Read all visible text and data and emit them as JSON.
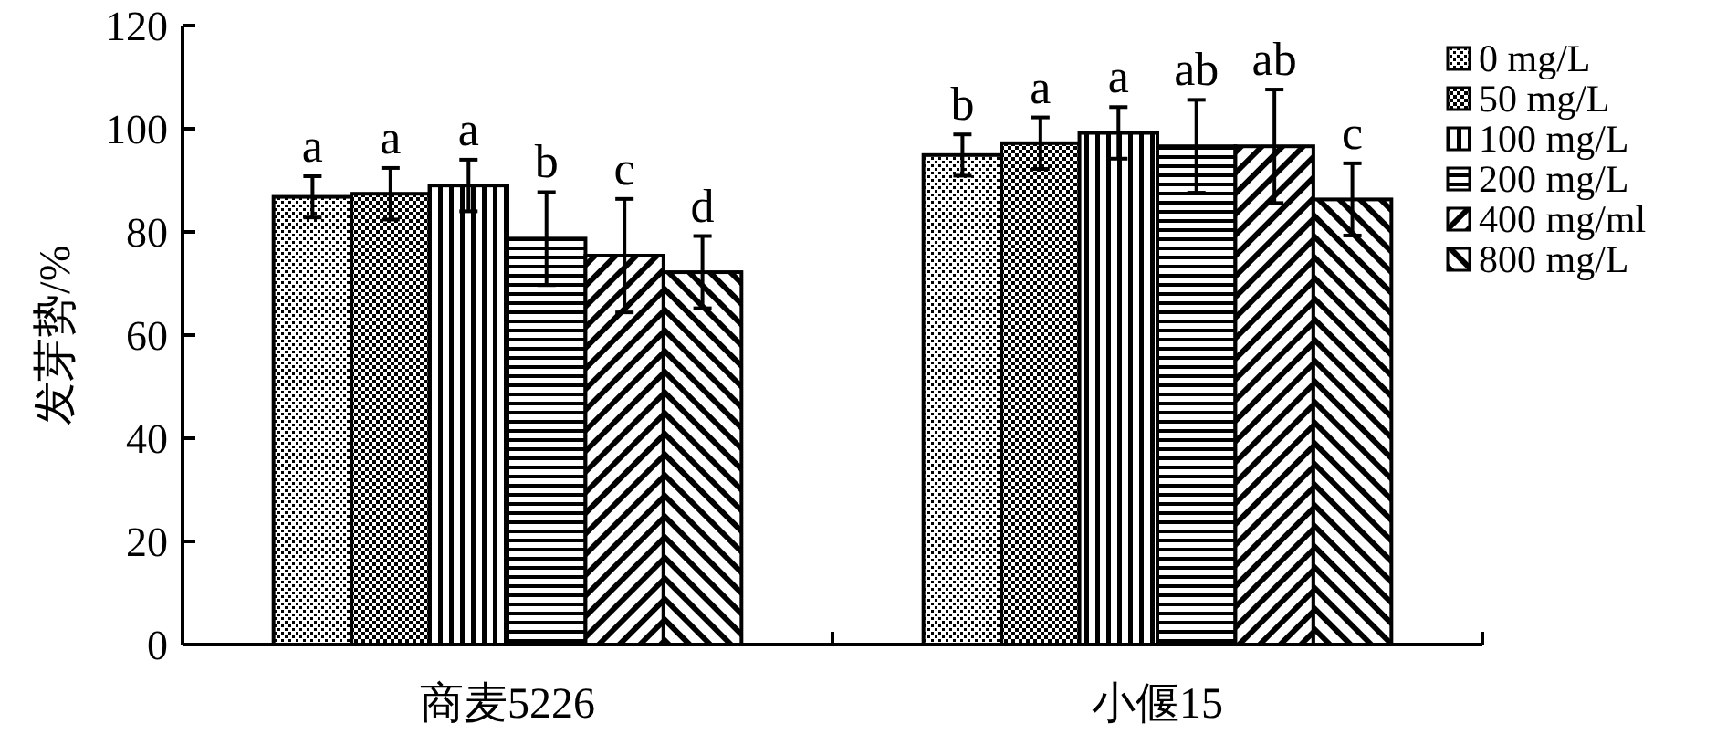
{
  "chart_data": {
    "type": "bar",
    "ylabel": "发芽势/%",
    "categories": [
      "商麦5226",
      "小偃15"
    ],
    "series": [
      {
        "name": "0 mg/L",
        "color": "#000000",
        "values": [
          86.8,
          94.9
        ],
        "errors": [
          4,
          4
        ],
        "value_labels": [
          "a",
          "b"
        ]
      },
      {
        "name": "50 mg/L",
        "color": "#000000",
        "values": [
          87.4,
          97.2
        ],
        "errors": [
          5,
          5
        ],
        "value_labels": [
          "a",
          "a"
        ]
      },
      {
        "name": "100 mg/L",
        "color": "#000000",
        "values": [
          89,
          99.2
        ],
        "errors": [
          5,
          5
        ],
        "value_labels": [
          "a",
          "a"
        ]
      },
      {
        "name": "200 mg/L",
        "color": "#000000",
        "values": [
          78.7,
          96.6
        ],
        "errors": [
          9,
          9
        ],
        "value_labels": [
          "b",
          "ab"
        ]
      },
      {
        "name": "400 mg/ml",
        "color": "#000000",
        "values": [
          75.4,
          96.6
        ],
        "errors": [
          11,
          11
        ],
        "value_labels": [
          "c",
          "ab"
        ]
      },
      {
        "name": "800 mg/L",
        "color": "#000000",
        "values": [
          72.2,
          86.3
        ],
        "errors": [
          7,
          7
        ],
        "value_labels": [
          "d",
          "c"
        ]
      }
    ],
    "ylim": [
      0,
      120
    ],
    "yticks": [
      0,
      20,
      40,
      60,
      80,
      100,
      120
    ],
    "legend": "top right",
    "grid": false
  }
}
